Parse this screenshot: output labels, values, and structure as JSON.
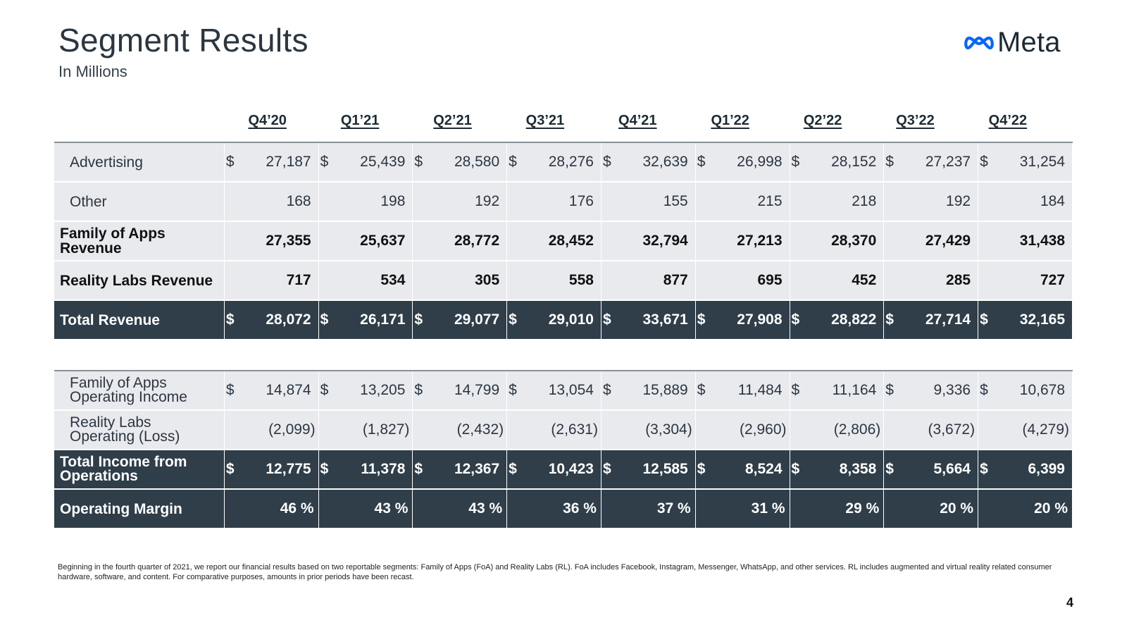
{
  "header": {
    "title": "Segment Results",
    "subtitle": "In Millions",
    "logo_text": "Meta",
    "logo_icon": "meta-infinity-icon",
    "logo_color": "#0866ff"
  },
  "quarters": [
    "Q4’20",
    "Q1’21",
    "Q2’21",
    "Q3’21",
    "Q4’21",
    "Q1’22",
    "Q2’22",
    "Q3’22",
    "Q4’22"
  ],
  "revenue_rows": [
    {
      "label": "Advertising",
      "style": "light",
      "indent": true,
      "bold": false,
      "dollar": true,
      "values": [
        "27,187",
        "25,439",
        "28,580",
        "28,276",
        "32,639",
        "26,998",
        "28,152",
        "27,237",
        "31,254"
      ]
    },
    {
      "label": "Other",
      "style": "light",
      "indent": true,
      "bold": false,
      "dollar": false,
      "values": [
        "168",
        "198",
        "192",
        "176",
        "155",
        "215",
        "218",
        "192",
        "184"
      ]
    },
    {
      "label": "Family of Apps Revenue",
      "style": "light",
      "indent": false,
      "bold": true,
      "dollar": false,
      "values": [
        "27,355",
        "25,637",
        "28,772",
        "28,452",
        "32,794",
        "27,213",
        "28,370",
        "27,429",
        "31,438"
      ]
    },
    {
      "label": "Reality Labs Revenue",
      "style": "light",
      "indent": false,
      "bold": true,
      "dollar": false,
      "values": [
        "717",
        "534",
        "305",
        "558",
        "877",
        "695",
        "452",
        "285",
        "727"
      ]
    },
    {
      "label": "Total Revenue",
      "style": "dark",
      "indent": false,
      "bold": true,
      "dollar": true,
      "values": [
        "28,072",
        "26,171",
        "29,077",
        "29,010",
        "33,671",
        "27,908",
        "28,822",
        "27,714",
        "32,165"
      ]
    }
  ],
  "income_rows": [
    {
      "label": "Family of Apps Operating Income",
      "style": "light",
      "indent": true,
      "bold": false,
      "dollar": true,
      "values": [
        "14,874",
        "13,205",
        "14,799",
        "13,054",
        "15,889",
        "11,484",
        "11,164",
        "9,336",
        "10,678"
      ]
    },
    {
      "label": "Reality Labs Operating (Loss)",
      "style": "light",
      "indent": true,
      "bold": false,
      "dollar": false,
      "values": [
        "(2,099)",
        "(1,827)",
        "(2,432)",
        "(2,631)",
        "(3,304)",
        "(2,960)",
        "(2,806)",
        "(3,672)",
        "(4,279)"
      ]
    },
    {
      "label": "Total Income from Operations",
      "style": "dark",
      "indent": false,
      "bold": true,
      "dollar": true,
      "values": [
        "12,775",
        "11,378",
        "12,367",
        "10,423",
        "12,585",
        "8,524",
        "8,358",
        "5,664",
        "6,399"
      ]
    },
    {
      "label": "Operating Margin",
      "style": "dark",
      "indent": false,
      "bold": true,
      "dollar": false,
      "values": [
        "46 %",
        "43 %",
        "43 %",
        "36 %",
        "37 %",
        "31 %",
        "29 %",
        "20 %",
        "20 %"
      ]
    }
  ],
  "currency_symbol": "$",
  "footnote": "Beginning in the fourth quarter of 2021, we report our financial results based on two reportable segments: Family of Apps (FoA) and Reality Labs (RL). FoA includes Facebook, Instagram, Messenger, WhatsApp, and other services. RL includes augmented and virtual reality related consumer hardware, software, and content. For comparative purposes, amounts in prior periods have been recast.",
  "page_number": "4"
}
